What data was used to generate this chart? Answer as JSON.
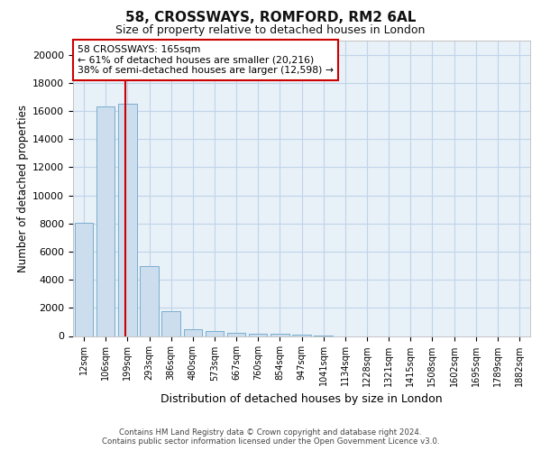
{
  "title1": "58, CROSSWAYS, ROMFORD, RM2 6AL",
  "title2": "Size of property relative to detached houses in London",
  "xlabel": "Distribution of detached houses by size in London",
  "ylabel": "Number of detached properties",
  "annotation_text": "58 CROSSWAYS: 165sqm\n← 61% of detached houses are smaller (20,216)\n38% of semi-detached houses are larger (12,598) →",
  "footer1": "Contains HM Land Registry data © Crown copyright and database right 2024.",
  "footer2": "Contains public sector information licensed under the Open Government Licence v3.0.",
  "categories": [
    "12sqm",
    "106sqm",
    "199sqm",
    "293sqm",
    "386sqm",
    "480sqm",
    "573sqm",
    "667sqm",
    "760sqm",
    "854sqm",
    "947sqm",
    "1041sqm",
    "1134sqm",
    "1228sqm",
    "1321sqm",
    "1415sqm",
    "1508sqm",
    "1602sqm",
    "1695sqm",
    "1789sqm",
    "1882sqm"
  ],
  "values": [
    8050,
    16300,
    16500,
    5000,
    1750,
    500,
    380,
    250,
    190,
    130,
    90,
    60,
    0,
    0,
    0,
    0,
    0,
    0,
    0,
    0,
    0
  ],
  "bar_color": "#ccdded",
  "bar_edge_color": "#7aaed0",
  "vline_color": "#cc0000",
  "vline_x": 1.9,
  "annotation_box_color": "#ffffff",
  "annotation_box_edge": "#cc0000",
  "grid_color": "#c0d4e8",
  "background_color": "#e8f0f8",
  "ylim": [
    0,
    21000
  ],
  "yticks": [
    0,
    2000,
    4000,
    6000,
    8000,
    10000,
    12000,
    14000,
    16000,
    18000,
    20000
  ]
}
